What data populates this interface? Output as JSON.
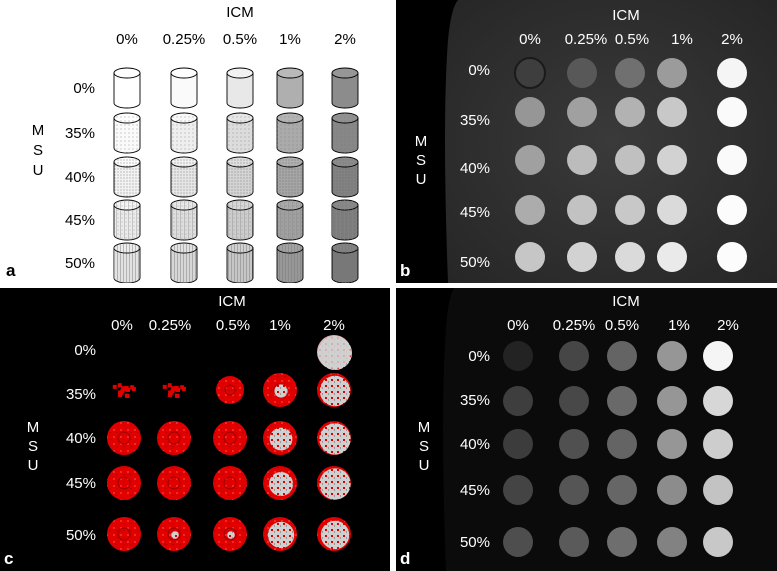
{
  "panels": {
    "a": {
      "label": "a"
    },
    "b": {
      "label": "b"
    },
    "c": {
      "label": "c"
    },
    "d": {
      "label": "d"
    }
  },
  "axis": {
    "icm_title": "ICM",
    "icm_values": [
      "0%",
      "0.25%",
      "0.5%",
      "1%",
      "2%"
    ],
    "msu_title_letters": [
      "M",
      "S",
      "U"
    ],
    "msu_values": [
      "0%",
      "35%",
      "40%",
      "45%",
      "50%"
    ]
  },
  "colors": {
    "background_a": "#ffffff",
    "background_dark": "#000000",
    "ct_tray": "#2c2c2c",
    "highlight_red": "#e00000",
    "highlight_white": "#d0d0d0"
  },
  "intensity": {
    "panel_a_fill_gray": [
      [
        255,
        250,
        232,
        175,
        140
      ],
      [
        250,
        238,
        220,
        170,
        135
      ],
      [
        242,
        230,
        212,
        165,
        130
      ],
      [
        235,
        222,
        205,
        160,
        125
      ],
      [
        226,
        215,
        198,
        152,
        120
      ]
    ],
    "panel_b_gray": [
      [
        62,
        88,
        112,
        155,
        245
      ],
      [
        150,
        160,
        178,
        200,
        250
      ],
      [
        160,
        188,
        192,
        210,
        250
      ],
      [
        172,
        194,
        200,
        218,
        252
      ],
      [
        198,
        210,
        218,
        234,
        252
      ]
    ],
    "panel_d_gray": [
      [
        35,
        70,
        100,
        150,
        245
      ],
      [
        62,
        72,
        105,
        150,
        215
      ],
      [
        60,
        80,
        100,
        150,
        205
      ],
      [
        68,
        85,
        102,
        140,
        195
      ],
      [
        78,
        90,
        110,
        130,
        200
      ]
    ],
    "panel_c_white_fraction": [
      [
        null,
        null,
        null,
        null,
        1.0
      ],
      [
        0.0,
        0.0,
        0.0,
        0.15,
        0.8
      ],
      [
        0.0,
        0.0,
        0.0,
        0.45,
        0.85
      ],
      [
        0.0,
        0.0,
        0.0,
        0.5,
        0.85
      ],
      [
        0.0,
        0.05,
        0.05,
        0.6,
        0.7
      ]
    ]
  }
}
